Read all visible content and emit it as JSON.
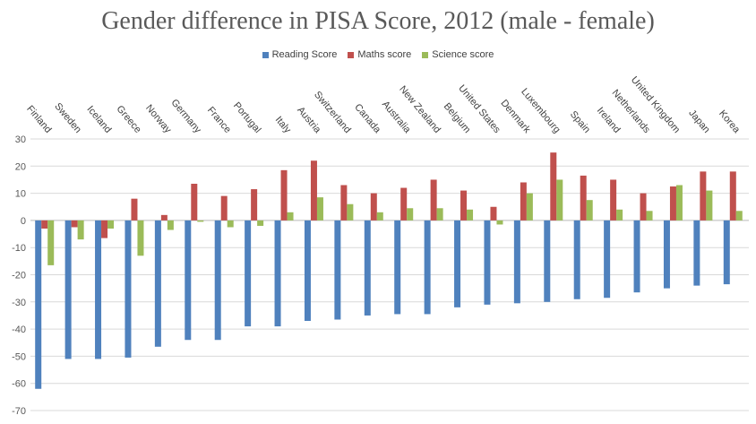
{
  "chart_data": {
    "type": "bar",
    "title": "Gender difference in PISA Score, 2012 (male - female)",
    "xlabel": "",
    "ylabel": "",
    "ylim": [
      -70,
      30
    ],
    "yticks": [
      30,
      20,
      10,
      0,
      -10,
      -20,
      -30,
      -40,
      -50,
      -60,
      -70
    ],
    "grid": true,
    "legend_position": "top",
    "categories": [
      "Finland",
      "Sweden",
      "Iceland",
      "Greece",
      "Norway",
      "Germany",
      "France",
      "Portugal",
      "Italy",
      "Austria",
      "Switzerland",
      "Canada",
      "Australia",
      "New Zealand",
      "Belgium",
      "United States",
      "Denmark",
      "Luxembourg",
      "Spain",
      "Ireland",
      "Netherlands",
      "United Kingdom",
      "Japan",
      "Korea"
    ],
    "series": [
      {
        "name": "Reading Score",
        "color": "#4F81BD",
        "values": [
          -62,
          -51,
          -51,
          -50.5,
          -46.5,
          -44,
          -44,
          -39,
          -39,
          -37,
          -36.5,
          -35,
          -34.5,
          -34.5,
          -32,
          -31,
          -30.5,
          -30,
          -29,
          -28.5,
          -26.5,
          -25,
          -24,
          -23.5
        ]
      },
      {
        "name": "Maths score",
        "color": "#C0504D",
        "values": [
          -3,
          -2.5,
          -6.5,
          8,
          2,
          13.5,
          9,
          11.5,
          18.5,
          22,
          13,
          10,
          12,
          15,
          11,
          5,
          14,
          25,
          16.5,
          15,
          10,
          12.5,
          18,
          18
        ]
      },
      {
        "name": "Science score",
        "color": "#9BBB59",
        "values": [
          -16.5,
          -7,
          -3,
          -13,
          -3.5,
          -0.5,
          -2.5,
          -2,
          3,
          8.5,
          6,
          3,
          4.5,
          4.5,
          4,
          -1.5,
          10,
          15,
          7.5,
          4,
          3.5,
          13,
          11,
          3.5
        ]
      }
    ]
  }
}
